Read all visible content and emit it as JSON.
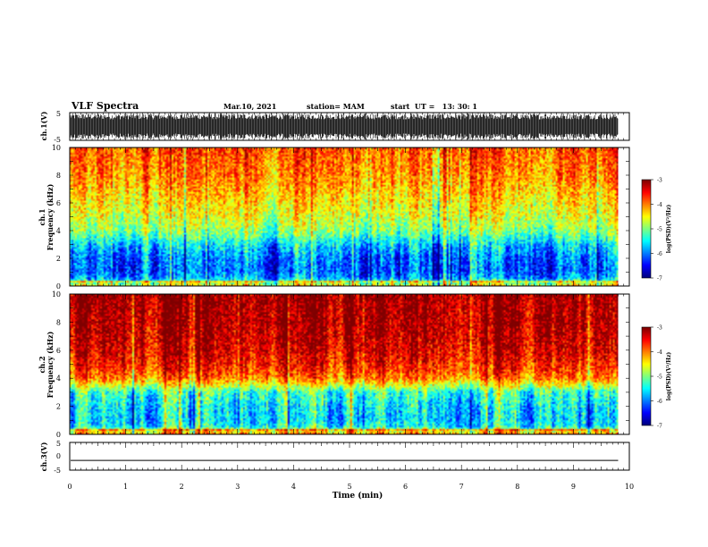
{
  "header": {
    "title": "VLF Spectra",
    "date": "Mar.10, 2021",
    "station": "station= MAM",
    "start": "start  UT =   13: 30: 1"
  },
  "chart_data": [
    {
      "type": "line",
      "panel": "ch1-waveform",
      "ylabel": "ch.1(V)",
      "ylim": [
        -5,
        5
      ],
      "yticks": [
        "5",
        "-5"
      ],
      "description_of_values": "dense impulsive waveform spanning full range",
      "xlim": [
        0,
        9.8
      ]
    },
    {
      "type": "heatmap",
      "panel": "ch1-spectrogram",
      "ylabel": "ch.1\nFrequency (kHz)",
      "ylim": [
        0,
        10
      ],
      "yticks": [
        "0",
        "2",
        "4",
        "6",
        "8",
        "10"
      ],
      "xlim": [
        0,
        9.8
      ],
      "colorbar": {
        "label": "log(PSD)(V²/Hz)",
        "range": [
          -7,
          -3
        ],
        "ticks": [
          "-3",
          "-4",
          "-5",
          "-6",
          "-7"
        ]
      },
      "power_profile_by_freq_khz": {
        "freq": [
          0,
          0.5,
          1,
          2,
          3,
          3.5,
          4,
          5,
          6,
          7,
          8,
          9,
          10
        ],
        "level": [
          -4.5,
          -5.8,
          -6.1,
          -6.0,
          -5.6,
          -5.2,
          -4.9,
          -4.6,
          -4.4,
          -4.2,
          -4.0,
          -3.9,
          -3.8
        ]
      }
    },
    {
      "type": "heatmap",
      "panel": "ch2-spectrogram",
      "ylabel": "ch.2\nFrequency (kHz)",
      "ylim": [
        0,
        10
      ],
      "yticks": [
        "0",
        "2",
        "4",
        "6",
        "8",
        "10"
      ],
      "xlim": [
        0,
        9.8
      ],
      "colorbar": {
        "label": "log(PSD)(V²/Hz)",
        "range": [
          -7,
          -3
        ],
        "ticks": [
          "-3",
          "-4",
          "-5",
          "-6",
          "-7"
        ]
      },
      "power_profile_by_freq_khz": {
        "freq": [
          0,
          0.5,
          1,
          2,
          3,
          3.5,
          4,
          5,
          6,
          7,
          8,
          9,
          10
        ],
        "level": [
          -4.2,
          -5.5,
          -5.7,
          -5.6,
          -5.3,
          -4.6,
          -4.0,
          -3.6,
          -3.4,
          -3.3,
          -3.2,
          -3.2,
          -3.1
        ]
      }
    },
    {
      "type": "line",
      "panel": "ch3-waveform",
      "ylabel": "ch.3(V)",
      "ylim": [
        -5,
        5
      ],
      "yticks": [
        "5",
        "0",
        "-5"
      ],
      "x": [
        0,
        9.8
      ],
      "values": [
        -1.5,
        -1.5
      ]
    }
  ],
  "xaxis": {
    "label": "Time (min)",
    "xlim": [
      0,
      10
    ],
    "ticks": [
      "0",
      "1",
      "2",
      "3",
      "4",
      "5",
      "6",
      "7",
      "8",
      "9",
      "10"
    ]
  }
}
